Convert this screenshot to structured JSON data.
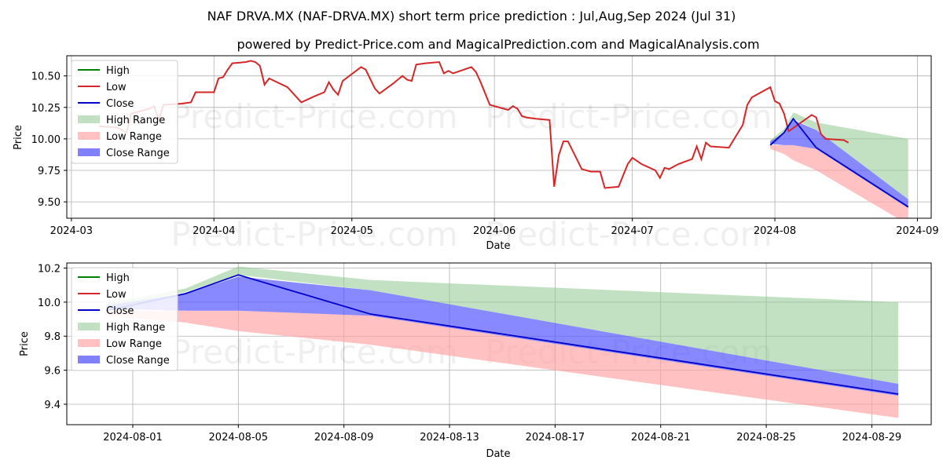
{
  "page": {
    "title": "NAF DRVA.MX (NAF-DRVA.MX) short term price prediction : Jul,Aug,Sep 2024 (Jul 31)",
    "subtitle": "powered by Predict-Price.com and MagicalPrediction.com and MagicalAnalysis.com",
    "watermark": "Predict-Price.com"
  },
  "colors": {
    "high": "#008000",
    "low": "#d62728",
    "close": "#0000cc",
    "high_range": "#8fc98f",
    "low_range": "#ff9f9f",
    "close_range": "#5555ff"
  },
  "chart_data": [
    {
      "type": "line",
      "xlabel": "Date",
      "ylabel": "Price",
      "xlim": [
        "2024-02-29",
        "2024-09-04"
      ],
      "ylim": [
        9.37,
        10.66
      ],
      "grid": true,
      "legend_position": "top-left",
      "x_ticks": [
        "2024-03-01",
        "2024-04-01",
        "2024-05-01",
        "2024-06-01",
        "2024-07-01",
        "2024-08-01",
        "2024-09-01"
      ],
      "x_tick_labels": [
        "2024-03",
        "2024-04",
        "2024-05",
        "2024-06",
        "2024-07",
        "2024-08",
        "2024-09"
      ],
      "y_ticks": [
        9.5,
        9.75,
        10.0,
        10.25,
        10.5
      ],
      "y_tick_labels": [
        "9.50",
        "9.75",
        "10.00",
        "10.25",
        "10.50"
      ],
      "legend": [
        "High",
        "Low",
        "Close",
        "High Range",
        "Low Range",
        "Close Range"
      ],
      "series": [
        {
          "name": "Low",
          "points": [
            [
              "2024-03-07",
              10.1
            ],
            [
              "2024-03-11",
              10.09
            ],
            [
              "2024-03-13",
              10.05
            ],
            [
              "2024-03-14",
              10.2
            ],
            [
              "2024-03-18",
              10.24
            ],
            [
              "2024-03-19",
              10.26
            ],
            [
              "2024-03-20",
              10.15
            ],
            [
              "2024-03-21",
              10.27
            ],
            [
              "2024-03-25",
              10.28
            ],
            [
              "2024-03-27",
              10.29
            ],
            [
              "2024-03-28",
              10.37
            ],
            [
              "2024-04-01",
              10.37
            ],
            [
              "2024-04-02",
              10.48
            ],
            [
              "2024-04-03",
              10.49
            ],
            [
              "2024-04-04",
              10.55
            ],
            [
              "2024-04-05",
              10.6
            ],
            [
              "2024-04-08",
              10.61
            ],
            [
              "2024-04-09",
              10.62
            ],
            [
              "2024-04-10",
              10.61
            ],
            [
              "2024-04-11",
              10.58
            ],
            [
              "2024-04-12",
              10.43
            ],
            [
              "2024-04-13",
              10.48
            ],
            [
              "2024-04-17",
              10.41
            ],
            [
              "2024-04-20",
              10.29
            ],
            [
              "2024-04-23",
              10.34
            ],
            [
              "2024-04-25",
              10.37
            ],
            [
              "2024-04-26",
              10.45
            ],
            [
              "2024-04-27",
              10.39
            ],
            [
              "2024-04-28",
              10.35
            ],
            [
              "2024-04-29",
              10.46
            ],
            [
              "2024-05-03",
              10.57
            ],
            [
              "2024-05-04",
              10.55
            ],
            [
              "2024-05-06",
              10.4
            ],
            [
              "2024-05-07",
              10.36
            ],
            [
              "2024-05-10",
              10.44
            ],
            [
              "2024-05-12",
              10.5
            ],
            [
              "2024-05-13",
              10.47
            ],
            [
              "2024-05-14",
              10.46
            ],
            [
              "2024-05-15",
              10.59
            ],
            [
              "2024-05-17",
              10.6
            ],
            [
              "2024-05-20",
              10.61
            ],
            [
              "2024-05-21",
              10.52
            ],
            [
              "2024-05-22",
              10.54
            ],
            [
              "2024-05-23",
              10.52
            ],
            [
              "2024-05-27",
              10.57
            ],
            [
              "2024-05-28",
              10.53
            ],
            [
              "2024-05-29",
              10.45
            ],
            [
              "2024-05-31",
              10.27
            ],
            [
              "2024-06-03",
              10.24
            ],
            [
              "2024-06-04",
              10.23
            ],
            [
              "2024-06-05",
              10.26
            ],
            [
              "2024-06-06",
              10.24
            ],
            [
              "2024-06-07",
              10.18
            ],
            [
              "2024-06-08",
              10.17
            ],
            [
              "2024-06-10",
              10.16
            ],
            [
              "2024-06-13",
              10.15
            ],
            [
              "2024-06-14",
              9.62
            ],
            [
              "2024-06-15",
              9.87
            ],
            [
              "2024-06-16",
              9.98
            ],
            [
              "2024-06-17",
              9.98
            ],
            [
              "2024-06-20",
              9.76
            ],
            [
              "2024-06-22",
              9.74
            ],
            [
              "2024-06-24",
              9.74
            ],
            [
              "2024-06-25",
              9.61
            ],
            [
              "2024-06-28",
              9.62
            ],
            [
              "2024-06-30",
              9.8
            ],
            [
              "2024-07-01",
              9.85
            ],
            [
              "2024-07-03",
              9.8
            ],
            [
              "2024-07-06",
              9.75
            ],
            [
              "2024-07-07",
              9.69
            ],
            [
              "2024-07-08",
              9.77
            ],
            [
              "2024-07-09",
              9.76
            ],
            [
              "2024-07-11",
              9.8
            ],
            [
              "2024-07-14",
              9.84
            ],
            [
              "2024-07-15",
              9.94
            ],
            [
              "2024-07-16",
              9.84
            ],
            [
              "2024-07-17",
              9.97
            ],
            [
              "2024-07-18",
              9.94
            ],
            [
              "2024-07-22",
              9.93
            ],
            [
              "2024-07-25",
              10.11
            ],
            [
              "2024-07-26",
              10.27
            ],
            [
              "2024-07-27",
              10.33
            ],
            [
              "2024-07-31",
              10.41
            ],
            [
              "2024-08-01",
              10.3
            ],
            [
              "2024-08-02",
              10.28
            ],
            [
              "2024-08-03",
              10.2
            ],
            [
              "2024-08-04",
              10.06
            ],
            [
              "2024-08-09",
              10.19
            ],
            [
              "2024-08-10",
              10.17
            ],
            [
              "2024-08-11",
              10.04
            ],
            [
              "2024-08-12",
              10.0
            ],
            [
              "2024-08-16",
              9.99
            ],
            [
              "2024-08-17",
              9.97
            ]
          ]
        }
      ],
      "forecast": {
        "dates": [
          "2024-07-31",
          "2024-08-03",
          "2024-08-05",
          "2024-08-10",
          "2024-08-30"
        ],
        "high_range": {
          "upper": [
            9.99,
            10.08,
            10.21,
            10.13,
            10.0
          ],
          "lower": [
            9.95,
            10.06,
            10.16,
            10.07,
            9.52
          ]
        },
        "close_range": {
          "upper": [
            9.98,
            10.05,
            10.15,
            10.07,
            9.52
          ],
          "lower": [
            9.96,
            9.95,
            9.95,
            9.92,
            9.45
          ]
        },
        "low_range": {
          "upper": [
            9.95,
            9.95,
            9.95,
            9.92,
            9.45
          ],
          "lower": [
            9.92,
            9.88,
            9.83,
            9.75,
            9.32
          ]
        },
        "close": [
          9.95,
          10.05,
          10.16,
          9.93,
          9.46
        ]
      }
    },
    {
      "type": "area",
      "xlabel": "Date",
      "ylabel": "Price",
      "xlim": [
        "2024-07-29 12:00",
        "2024-08-31 06:00"
      ],
      "ylim": [
        9.28,
        10.23
      ],
      "grid": true,
      "legend_position": "top-left",
      "x_ticks": [
        "2024-08-01",
        "2024-08-05",
        "2024-08-09",
        "2024-08-13",
        "2024-08-17",
        "2024-08-21",
        "2024-08-25",
        "2024-08-29"
      ],
      "x_tick_labels": [
        "2024-08-01",
        "2024-08-05",
        "2024-08-09",
        "2024-08-13",
        "2024-08-17",
        "2024-08-21",
        "2024-08-25",
        "2024-08-29"
      ],
      "y_ticks": [
        9.4,
        9.6,
        9.8,
        10.0,
        10.2
      ],
      "y_tick_labels": [
        "9.4",
        "9.6",
        "9.8",
        "10.0",
        "10.2"
      ],
      "legend": [
        "High",
        "Low",
        "Close",
        "High Range",
        "Low Range",
        "Close Range"
      ],
      "series": [],
      "forecast": {
        "dates": [
          "2024-07-31",
          "2024-08-03",
          "2024-08-05",
          "2024-08-10",
          "2024-08-30"
        ],
        "high_range": {
          "upper": [
            9.99,
            10.08,
            10.21,
            10.13,
            10.0
          ],
          "lower": [
            9.95,
            10.06,
            10.16,
            10.07,
            9.52
          ]
        },
        "close_range": {
          "upper": [
            9.98,
            10.05,
            10.15,
            10.07,
            9.52
          ],
          "lower": [
            9.96,
            9.95,
            9.95,
            9.92,
            9.45
          ]
        },
        "low_range": {
          "upper": [
            9.95,
            9.95,
            9.95,
            9.92,
            9.45
          ],
          "lower": [
            9.92,
            9.88,
            9.83,
            9.75,
            9.32
          ]
        },
        "close": [
          9.95,
          10.05,
          10.16,
          9.93,
          9.46
        ]
      }
    }
  ]
}
